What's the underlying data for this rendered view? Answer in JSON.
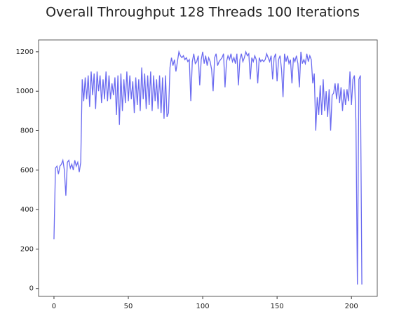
{
  "chart_data": {
    "type": "line",
    "title": "Overall Throughput 128 Threads 100 Iterations",
    "x": [
      0,
      1,
      2,
      3,
      4,
      5,
      6,
      7,
      8,
      9,
      10,
      11,
      12,
      13,
      14,
      15,
      16,
      17,
      18,
      19,
      20,
      21,
      22,
      23,
      24,
      25,
      26,
      27,
      28,
      29,
      30,
      31,
      32,
      33,
      34,
      35,
      36,
      37,
      38,
      39,
      40,
      41,
      42,
      43,
      44,
      45,
      46,
      47,
      48,
      49,
      50,
      51,
      52,
      53,
      54,
      55,
      56,
      57,
      58,
      59,
      60,
      61,
      62,
      63,
      64,
      65,
      66,
      67,
      68,
      69,
      70,
      71,
      72,
      73,
      74,
      75,
      76,
      77,
      78,
      79,
      80,
      81,
      82,
      83,
      84,
      85,
      86,
      87,
      88,
      89,
      90,
      91,
      92,
      93,
      94,
      95,
      96,
      97,
      98,
      99,
      100,
      101,
      102,
      103,
      104,
      105,
      106,
      107,
      108,
      109,
      110,
      111,
      112,
      113,
      114,
      115,
      116,
      117,
      118,
      119,
      120,
      121,
      122,
      123,
      124,
      125,
      126,
      127,
      128,
      129,
      130,
      131,
      132,
      133,
      134,
      135,
      136,
      137,
      138,
      139,
      140,
      141,
      142,
      143,
      144,
      145,
      146,
      147,
      148,
      149,
      150,
      151,
      152,
      153,
      154,
      155,
      156,
      157,
      158,
      159,
      160,
      161,
      162,
      163,
      164,
      165,
      166,
      167,
      168,
      169,
      170,
      171,
      172,
      173,
      174,
      175,
      176,
      177,
      178,
      179,
      180,
      181,
      182,
      183,
      184,
      185,
      186,
      187,
      188,
      189,
      190,
      191,
      192,
      193,
      194,
      195,
      196,
      197,
      198,
      199,
      200,
      201,
      202,
      203,
      204,
      205,
      206,
      207
    ],
    "series": [
      {
        "name": "throughput",
        "color": "#6a6af0",
        "values": [
          250,
          610,
          620,
          580,
          620,
          630,
          650,
          600,
          470,
          640,
          650,
          610,
          630,
          600,
          650,
          620,
          640,
          590,
          640,
          1060,
          950,
          1070,
          960,
          1080,
          920,
          1100,
          980,
          1090,
          910,
          1100,
          1000,
          1080,
          940,
          1060,
          960,
          1100,
          950,
          1080,
          960,
          1040,
          980,
          1070,
          880,
          1080,
          830,
          1090,
          900,
          1060,
          940,
          1100,
          950,
          1080,
          960,
          1050,
          890,
          1070,
          930,
          1060,
          900,
          1120,
          960,
          1090,
          910,
          1080,
          930,
          1100,
          900,
          1080,
          950,
          1060,
          910,
          1080,
          890,
          1070,
          860,
          1080,
          870,
          890,
          1120,
          1170,
          1130,
          1160,
          1100,
          1150,
          1200,
          1180,
          1170,
          1180,
          1160,
          1170,
          1150,
          1160,
          950,
          1150,
          1190,
          1140,
          1150,
          1180,
          1030,
          1160,
          1200,
          1140,
          1180,
          1130,
          1170,
          1150,
          1110,
          1000,
          1170,
          1190,
          1130,
          1150,
          1160,
          1170,
          1190,
          1020,
          1150,
          1180,
          1160,
          1190,
          1150,
          1170,
          1140,
          1190,
          1030,
          1160,
          1190,
          1150,
          1170,
          1200,
          1180,
          1190,
          1060,
          1170,
          1150,
          1180,
          1160,
          1040,
          1170,
          1150,
          1160,
          1150,
          1160,
          1190,
          1170,
          1150,
          1180,
          1060,
          1170,
          1190,
          1050,
          1160,
          1180,
          1110,
          970,
          1190,
          1150,
          1180,
          1140,
          1160,
          1040,
          1170,
          1150,
          1180,
          1140,
          1020,
          1200,
          1140,
          1160,
          1140,
          1190,
          1150,
          1180,
          1160,
          1040,
          1090,
          800,
          970,
          880,
          1030,
          880,
          1060,
          900,
          1000,
          870,
          1010,
          800,
          980,
          990,
          1040,
          960,
          1040,
          940,
          1020,
          900,
          1010,
          930,
          1010,
          950,
          1100,
          930,
          1060,
          1080,
          850,
          20,
          1060,
          1080,
          20
        ]
      }
    ],
    "xlim": [
      -10.35,
      217.35
    ],
    "ylim": [
      -40,
      1260
    ],
    "xticks": [
      0,
      50,
      100,
      150,
      200
    ],
    "yticks": [
      0,
      200,
      400,
      600,
      800,
      1000,
      1200
    ]
  }
}
